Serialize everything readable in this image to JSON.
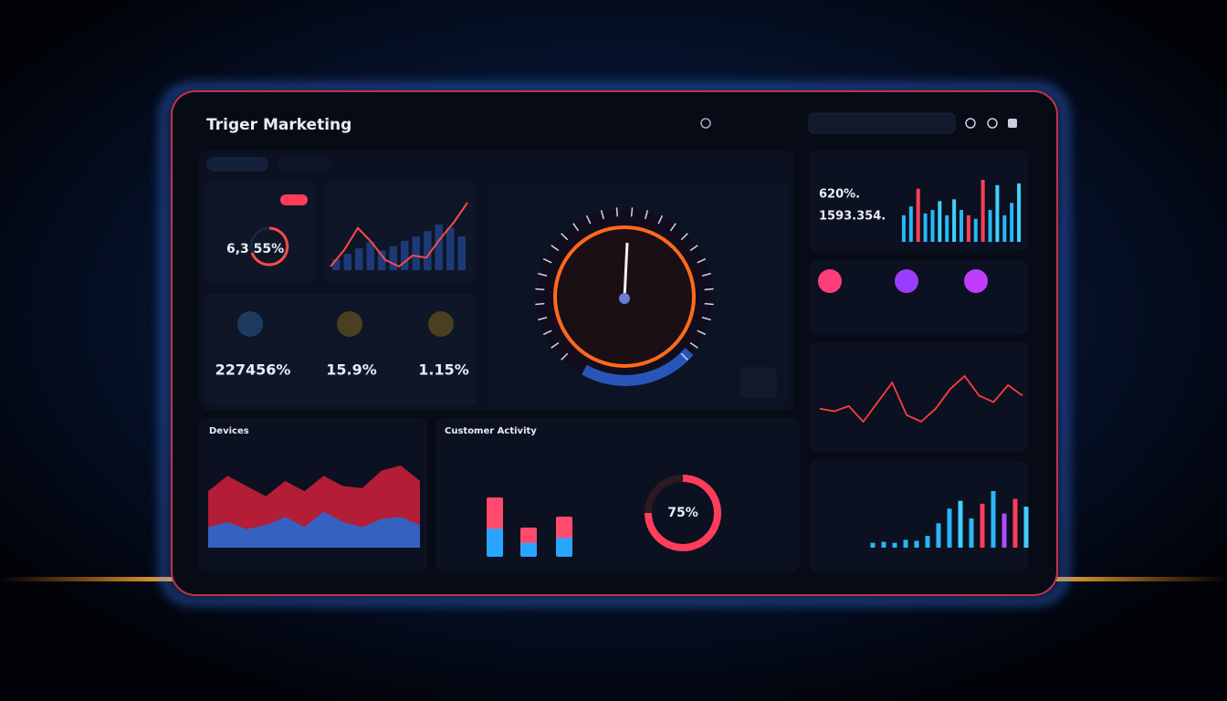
{
  "header": {
    "title": "Triger Marketing"
  },
  "kpi_ring": {
    "label": "6,3 55%"
  },
  "stats": [
    "227456%",
    "15.9%",
    "1.15%"
  ],
  "summary": [
    "620%.",
    "1593.354."
  ],
  "sections": {
    "devices": "Devices",
    "activity": "Customer Activity"
  },
  "trend": {
    "color": "#ff4a4a",
    "values": [
      20,
      35,
      55,
      42,
      26,
      20,
      30,
      28,
      45,
      60,
      78
    ],
    "bars": [
      10,
      15,
      20,
      26,
      18,
      22,
      27,
      31,
      36,
      42,
      39,
      31
    ]
  },
  "top_bars": {
    "values": [
      30,
      40,
      60,
      32,
      36,
      46,
      30,
      48,
      36,
      30,
      26,
      70,
      36,
      64,
      30,
      44,
      66
    ],
    "colors": [
      "#29b6f6",
      "#29b6f6",
      "#ff3d5a",
      "#29b6f6",
      "#29b6f6",
      "#3fd0ff",
      "#29b6f6",
      "#3fd0ff",
      "#29b6f6",
      "#ff3d5a",
      "#29b6f6",
      "#ff3d5a",
      "#29b6f6",
      "#3fd0ff",
      "#29b6f6",
      "#29b6f6",
      "#3fd0ff"
    ]
  },
  "wave": {
    "color": "#ff3d3d",
    "values": [
      40,
      38,
      42,
      30,
      45,
      60,
      35,
      30,
      40,
      55,
      65,
      50,
      45,
      58,
      50
    ]
  },
  "area": {
    "series": [
      {
        "color": "#d1203a",
        "values": [
          55,
          70,
          60,
          50,
          65,
          55,
          70,
          60,
          58,
          75,
          80,
          65
        ]
      },
      {
        "color": "#1e6fd9",
        "values": [
          20,
          25,
          18,
          22,
          30,
          20,
          35,
          25,
          20,
          28,
          30,
          22
        ]
      }
    ]
  },
  "activity_bars": {
    "values": [
      65,
      32,
      44
    ]
  },
  "donut": {
    "value": 75,
    "label": "75%",
    "color": "#ff3d5a"
  },
  "bottom_bars": {
    "values": [
      5,
      6,
      5,
      8,
      7,
      12,
      25,
      40,
      48,
      30,
      45,
      58,
      35,
      50,
      42
    ],
    "colors": [
      "#29b6f6",
      "#29b6f6",
      "#29b6f6",
      "#29b6f6",
      "#29b6f6",
      "#29b6f6",
      "#29b6f6",
      "#29b6f6",
      "#3fd0ff",
      "#29b6f6",
      "#ff3d5a",
      "#29b6f6",
      "#b04bff",
      "#ff3d5a",
      "#3fd0ff"
    ]
  }
}
